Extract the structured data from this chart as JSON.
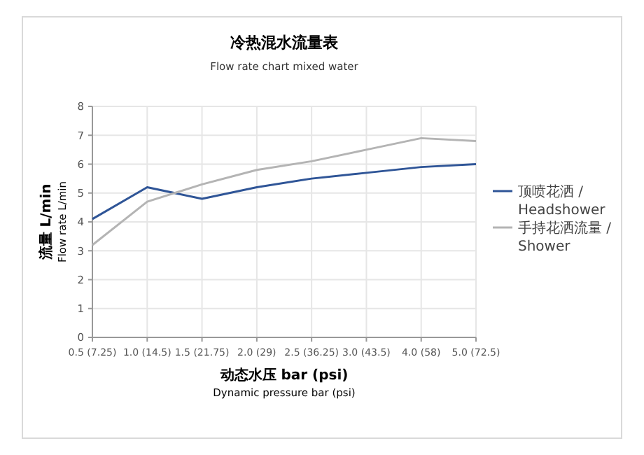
{
  "chart_data": {
    "type": "line",
    "title": "冷热混水流量表",
    "subtitle": "Flow rate chart mixed water",
    "xlabel": "动态水压 bar (psi)\nDynamic pressure bar (psi)",
    "ylabel": "流量 L/min\nFlow rate L/min",
    "categories": [
      "0.5 (7.25)",
      "1.0 (14.5)",
      "1.5 (21.75)",
      "2.0 (29)",
      "2.5 (36.25)",
      "3.0 (43.5)",
      "4.0 (58)",
      "5.0 (72.5)"
    ],
    "series": [
      {
        "name": "顶喷花洒 / Headshower",
        "color": "#2f5597",
        "values": [
          4.1,
          5.2,
          4.8,
          5.2,
          5.5,
          5.7,
          5.9,
          6.0
        ]
      },
      {
        "name": "手持花洒流量 / Shower",
        "color": "#b4b4b4",
        "values": [
          3.2,
          4.7,
          5.3,
          5.8,
          6.1,
          6.5,
          6.9,
          6.8
        ]
      }
    ],
    "ylim": [
      0,
      8
    ],
    "yticks": [
      0,
      1,
      2,
      3,
      4,
      5,
      6,
      7,
      8
    ],
    "grid": true,
    "legend": "right",
    "marker": "none",
    "line_style": "solid"
  }
}
